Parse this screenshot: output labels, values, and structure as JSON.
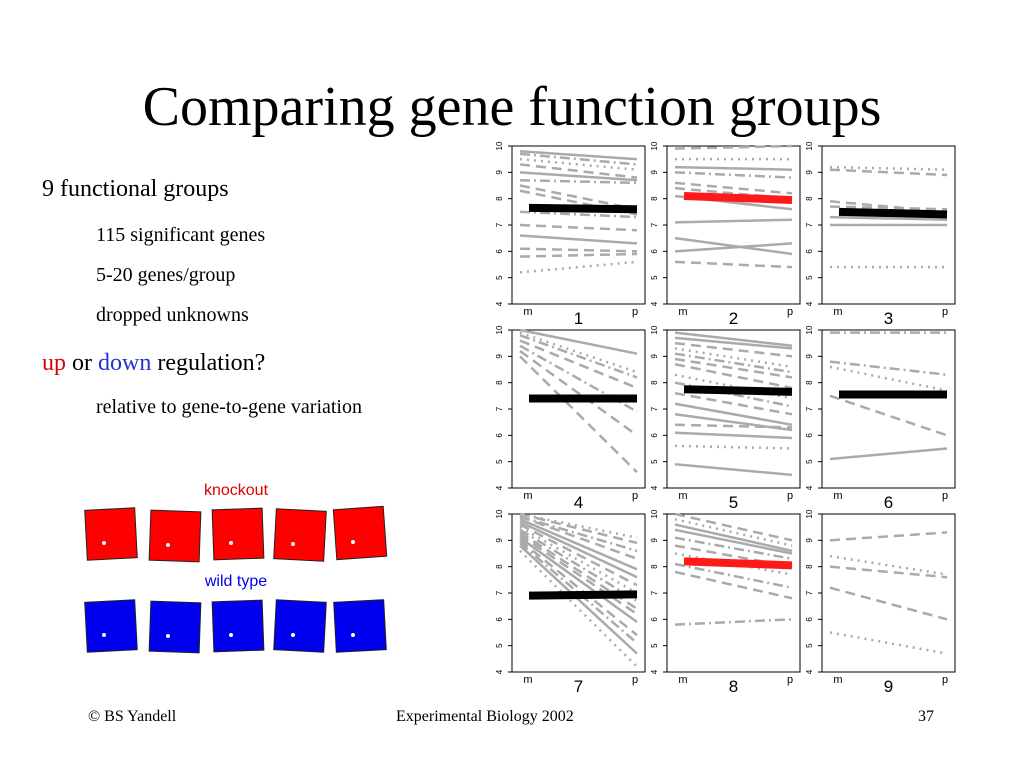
{
  "slide": {
    "title": "Comparing gene function groups",
    "bullet1": "9 functional groups",
    "sub1": "115 significant genes",
    "sub2": "5-20 genes/group",
    "sub3": "dropped unknowns",
    "bullet2_up": "up",
    "bullet2_or": " or ",
    "bullet2_down": "down",
    "bullet2_rest": " regulation?",
    "sub4": "relative to gene-to-gene variation",
    "knockout_label": "knockout",
    "wildtype_label": "wild type",
    "footer_left": "© BS Yandell",
    "footer_center": "Experimental Biology 2002",
    "footer_right": "37"
  },
  "colors": {
    "up": "#e00000",
    "down": "#2233cc",
    "knockout_square": "#ff0000",
    "wildtype_square": "#0000ee",
    "gene_line": "#aaaaaa",
    "mean_line_black": "#000000",
    "mean_line_red": "#ff1a1a"
  },
  "chart_data": [
    {
      "type": "line",
      "label": "1",
      "x": [
        "m",
        "p"
      ],
      "ylim": [
        4,
        10
      ],
      "yticks": [
        4,
        5,
        6,
        7,
        8,
        9,
        10
      ],
      "mean": {
        "values": [
          7.65,
          7.6
        ],
        "color": "black"
      },
      "genes": [
        [
          9.8,
          9.5,
          "solid"
        ],
        [
          9.7,
          9.3,
          "dashdot"
        ],
        [
          9.5,
          9.1,
          "dotted"
        ],
        [
          9.3,
          8.8,
          "dashed"
        ],
        [
          9.0,
          8.7,
          "solid"
        ],
        [
          8.7,
          8.6,
          "dashdot"
        ],
        [
          8.5,
          7.6,
          "dashed"
        ],
        [
          8.3,
          7.4,
          "dashed"
        ],
        [
          7.5,
          7.3,
          "dashdot"
        ],
        [
          7.0,
          6.8,
          "dashed"
        ],
        [
          6.6,
          6.3,
          "solid"
        ],
        [
          6.1,
          6.0,
          "dashed"
        ],
        [
          5.8,
          5.9,
          "dashed"
        ],
        [
          5.2,
          5.6,
          "dotted"
        ]
      ]
    },
    {
      "type": "line",
      "label": "2",
      "x": [
        "m",
        "p"
      ],
      "ylim": [
        4,
        10
      ],
      "yticks": [
        4,
        5,
        6,
        7,
        8,
        9,
        10
      ],
      "mean": {
        "values": [
          8.1,
          7.95
        ],
        "color": "red"
      },
      "genes": [
        [
          9.9,
          10.0,
          "dashed"
        ],
        [
          9.5,
          9.5,
          "dotted"
        ],
        [
          9.2,
          9.1,
          "solid"
        ],
        [
          9.0,
          8.8,
          "dashdot"
        ],
        [
          8.6,
          8.2,
          "dashed"
        ],
        [
          8.4,
          8.0,
          "dashed"
        ],
        [
          8.1,
          7.6,
          "solid"
        ],
        [
          7.1,
          7.2,
          "solid"
        ],
        [
          6.5,
          5.9,
          "solid"
        ],
        [
          6.0,
          6.3,
          "solid"
        ],
        [
          5.6,
          5.4,
          "dashed"
        ]
      ]
    },
    {
      "type": "line",
      "label": "3",
      "x": [
        "m",
        "p"
      ],
      "ylim": [
        4,
        10
      ],
      "yticks": [
        4,
        5,
        6,
        7,
        8,
        9,
        10
      ],
      "mean": {
        "values": [
          7.5,
          7.4
        ],
        "color": "black"
      },
      "genes": [
        [
          9.2,
          9.1,
          "dotted"
        ],
        [
          9.1,
          8.9,
          "dashed"
        ],
        [
          7.9,
          7.5,
          "dashed"
        ],
        [
          7.7,
          7.6,
          "dashed"
        ],
        [
          7.3,
          7.2,
          "solid"
        ],
        [
          7.0,
          7.0,
          "solid"
        ],
        [
          5.4,
          5.4,
          "dotted"
        ]
      ]
    },
    {
      "type": "line",
      "label": "4",
      "x": [
        "m",
        "p"
      ],
      "ylim": [
        4,
        10
      ],
      "yticks": [
        4,
        5,
        6,
        7,
        8,
        9,
        10
      ],
      "mean": {
        "values": [
          7.4,
          7.4
        ],
        "color": "black"
      },
      "genes": [
        [
          10.0,
          9.1,
          "solid"
        ],
        [
          9.9,
          8.4,
          "dotted"
        ],
        [
          9.8,
          8.2,
          "dashdot"
        ],
        [
          9.6,
          7.8,
          "dashed"
        ],
        [
          9.4,
          6.9,
          "dashdot"
        ],
        [
          9.2,
          6.0,
          "dashed"
        ],
        [
          9.0,
          4.6,
          "dashed"
        ]
      ]
    },
    {
      "type": "line",
      "label": "5",
      "x": [
        "m",
        "p"
      ],
      "ylim": [
        4,
        10
      ],
      "yticks": [
        4,
        5,
        6,
        7,
        8,
        9,
        10
      ],
      "mean": {
        "values": [
          7.75,
          7.65
        ],
        "color": "black"
      },
      "genes": [
        [
          9.9,
          9.4,
          "solid"
        ],
        [
          9.7,
          9.3,
          "solid"
        ],
        [
          9.5,
          9.0,
          "dashed"
        ],
        [
          9.3,
          8.6,
          "dotted"
        ],
        [
          9.1,
          8.4,
          "dashdot"
        ],
        [
          8.9,
          8.2,
          "dashed"
        ],
        [
          8.7,
          7.8,
          "dashed"
        ],
        [
          8.3,
          7.4,
          "dotted"
        ],
        [
          8.0,
          7.1,
          "dashdot"
        ],
        [
          7.6,
          6.8,
          "dashed"
        ],
        [
          7.2,
          6.4,
          "solid"
        ],
        [
          6.8,
          6.2,
          "solid"
        ],
        [
          6.4,
          6.3,
          "dashed"
        ],
        [
          6.1,
          5.9,
          "solid"
        ],
        [
          5.6,
          5.5,
          "dotted"
        ],
        [
          4.9,
          4.5,
          "solid"
        ]
      ]
    },
    {
      "type": "line",
      "label": "6",
      "x": [
        "m",
        "p"
      ],
      "ylim": [
        4,
        10
      ],
      "yticks": [
        4,
        5,
        6,
        7,
        8,
        9,
        10
      ],
      "mean": {
        "values": [
          7.55,
          7.55
        ],
        "color": "black"
      },
      "genes": [
        [
          9.9,
          9.9,
          "dashdot"
        ],
        [
          8.8,
          8.3,
          "dashdot"
        ],
        [
          8.6,
          7.7,
          "dotted"
        ],
        [
          7.5,
          6.0,
          "dashed"
        ],
        [
          5.1,
          5.5,
          "solid"
        ]
      ]
    },
    {
      "type": "line",
      "label": "7",
      "x": [
        "m",
        "p"
      ],
      "ylim": [
        4,
        10
      ],
      "yticks": [
        4,
        5,
        6,
        7,
        8,
        9,
        10
      ],
      "mean": {
        "values": [
          6.9,
          6.95
        ],
        "color": "black"
      },
      "genes": [
        [
          10.0,
          9.1,
          "dotted"
        ],
        [
          10.0,
          8.9,
          "dashed"
        ],
        [
          9.9,
          8.6,
          "dashdot"
        ],
        [
          9.9,
          8.3,
          "dashed"
        ],
        [
          9.8,
          7.9,
          "solid"
        ],
        [
          9.7,
          7.6,
          "solid"
        ],
        [
          9.6,
          7.3,
          "dashed"
        ],
        [
          9.5,
          7.0,
          "dotted"
        ],
        [
          9.4,
          6.7,
          "dashdot"
        ],
        [
          9.3,
          6.4,
          "dashed"
        ],
        [
          9.2,
          6.2,
          "dashed"
        ],
        [
          9.1,
          5.9,
          "solid"
        ],
        [
          9.0,
          5.4,
          "dashed"
        ],
        [
          8.9,
          5.1,
          "dashdot"
        ],
        [
          8.8,
          4.7,
          "solid"
        ],
        [
          8.6,
          4.2,
          "dotted"
        ]
      ]
    },
    {
      "type": "line",
      "label": "8",
      "x": [
        "m",
        "p"
      ],
      "ylim": [
        4,
        10
      ],
      "yticks": [
        4,
        5,
        6,
        7,
        8,
        9,
        10
      ],
      "mean": {
        "values": [
          8.2,
          8.05
        ],
        "color": "red"
      },
      "genes": [
        [
          10.0,
          9.0,
          "dashed"
        ],
        [
          9.8,
          8.8,
          "dotted"
        ],
        [
          9.6,
          8.6,
          "solid"
        ],
        [
          9.4,
          8.5,
          "solid"
        ],
        [
          9.1,
          8.3,
          "dashdot"
        ],
        [
          8.8,
          8.0,
          "dashed"
        ],
        [
          8.5,
          7.7,
          "dotted"
        ],
        [
          8.1,
          7.2,
          "dashdot"
        ],
        [
          7.8,
          6.8,
          "dashed"
        ],
        [
          5.8,
          6.0,
          "dashdot"
        ]
      ]
    },
    {
      "type": "line",
      "label": "9",
      "x": [
        "m",
        "p"
      ],
      "ylim": [
        4,
        10
      ],
      "yticks": [
        4,
        5,
        6,
        7,
        8,
        9,
        10
      ],
      "mean": null,
      "genes": [
        [
          9.0,
          9.3,
          "dashed"
        ],
        [
          8.4,
          7.7,
          "dotted"
        ],
        [
          8.0,
          7.6,
          "dashed"
        ],
        [
          7.2,
          6.0,
          "dashed"
        ],
        [
          5.5,
          4.7,
          "dotted"
        ]
      ]
    }
  ],
  "knockout_dots": 5,
  "wildtype_dots": 5
}
